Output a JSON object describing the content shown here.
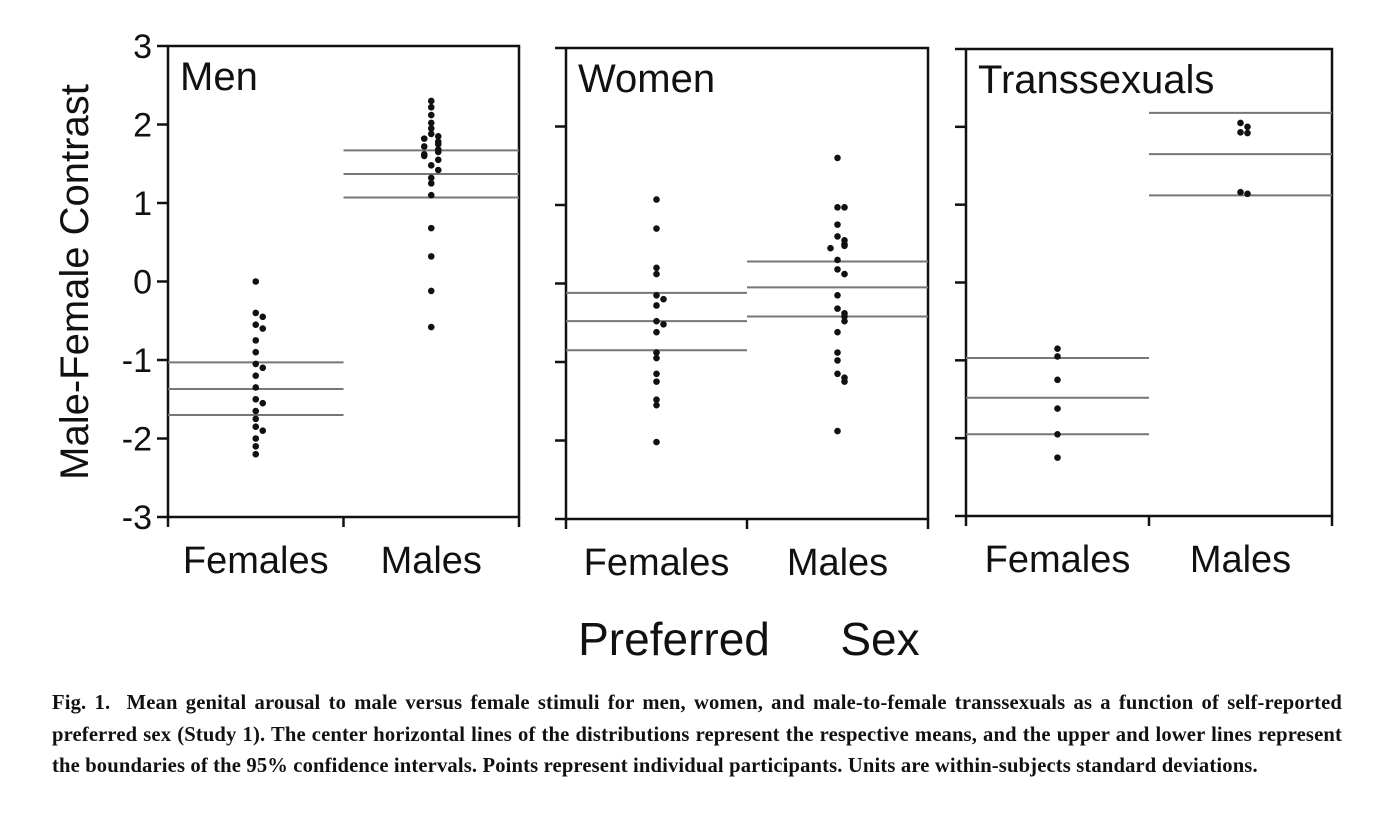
{
  "chart_data": {
    "type": "scatter",
    "ylabel": "Male-Female Contrast",
    "xlabel_words": [
      "Preferred",
      "Sex"
    ],
    "ylim": [
      -3,
      3
    ],
    "yticks": [
      "3",
      "2",
      "1",
      "0",
      "-1",
      "-2",
      "-3"
    ],
    "categories": [
      "Females",
      "Males"
    ],
    "panels": [
      {
        "title": "Men",
        "groups": [
          {
            "category": "Females",
            "mean": -1.37,
            "ci_upper": -1.03,
            "ci_lower": -1.7,
            "points": [
              0.0,
              -0.4,
              -0.45,
              -0.55,
              -0.6,
              -0.75,
              -0.9,
              -1.05,
              -1.1,
              -1.2,
              -1.35,
              -1.5,
              -1.55,
              -1.65,
              -1.75,
              -1.85,
              -1.9,
              -2.0,
              -2.1,
              -2.2
            ]
          },
          {
            "category": "Males",
            "mean": 1.37,
            "ci_upper": 1.67,
            "ci_lower": 1.07,
            "points": [
              2.3,
              2.22,
              2.12,
              2.02,
              1.95,
              1.88,
              1.85,
              1.82,
              1.78,
              1.75,
              1.72,
              1.68,
              1.65,
              1.62,
              1.6,
              1.55,
              1.48,
              1.42,
              1.32,
              1.25,
              1.1,
              0.68,
              0.32,
              -0.12,
              -0.58
            ]
          }
        ]
      },
      {
        "title": "Women",
        "groups": [
          {
            "category": "Females",
            "mean": -0.48,
            "ci_upper": -0.12,
            "ci_lower": -0.85,
            "points": [
              1.07,
              0.7,
              0.2,
              0.12,
              -0.15,
              -0.2,
              -0.28,
              -0.48,
              -0.52,
              -0.62,
              -0.88,
              -0.95,
              -1.15,
              -1.25,
              -1.48,
              -1.55,
              -2.02
            ]
          },
          {
            "category": "Males",
            "mean": -0.05,
            "ci_upper": 0.28,
            "ci_lower": -0.42,
            "points": [
              1.6,
              0.97,
              0.97,
              0.75,
              0.6,
              0.55,
              0.5,
              0.48,
              0.45,
              0.3,
              0.18,
              0.12,
              -0.15,
              -0.32,
              -0.38,
              -0.42,
              -0.48,
              -0.62,
              -0.88,
              -0.98,
              -1.15,
              -1.2,
              -1.25,
              -1.88
            ]
          }
        ]
      },
      {
        "title": "Transsexuals",
        "groups": [
          {
            "category": "Females",
            "mean": -1.48,
            "ci_upper": -0.97,
            "ci_lower": -1.95,
            "points": [
              -0.85,
              -0.95,
              -1.25,
              -1.62,
              -1.95,
              -2.25
            ]
          },
          {
            "category": "Males",
            "mean": 1.65,
            "ci_upper": 2.18,
            "ci_lower": 1.12,
            "points": [
              2.05,
              2.0,
              1.93,
              1.92,
              1.16,
              1.14
            ]
          }
        ]
      }
    ]
  },
  "caption": {
    "label": "Fig. 1.",
    "text": "Mean genital arousal to male versus female stimuli for men, women, and male-to-female transsexuals as a function of self-reported preferred sex (Study 1). The center horizontal lines of the distributions represent the respective means, and the upper and lower lines represent the boundaries of the 95% confidence intervals. Points represent individual participants. Units are within-subjects standard deviations."
  }
}
